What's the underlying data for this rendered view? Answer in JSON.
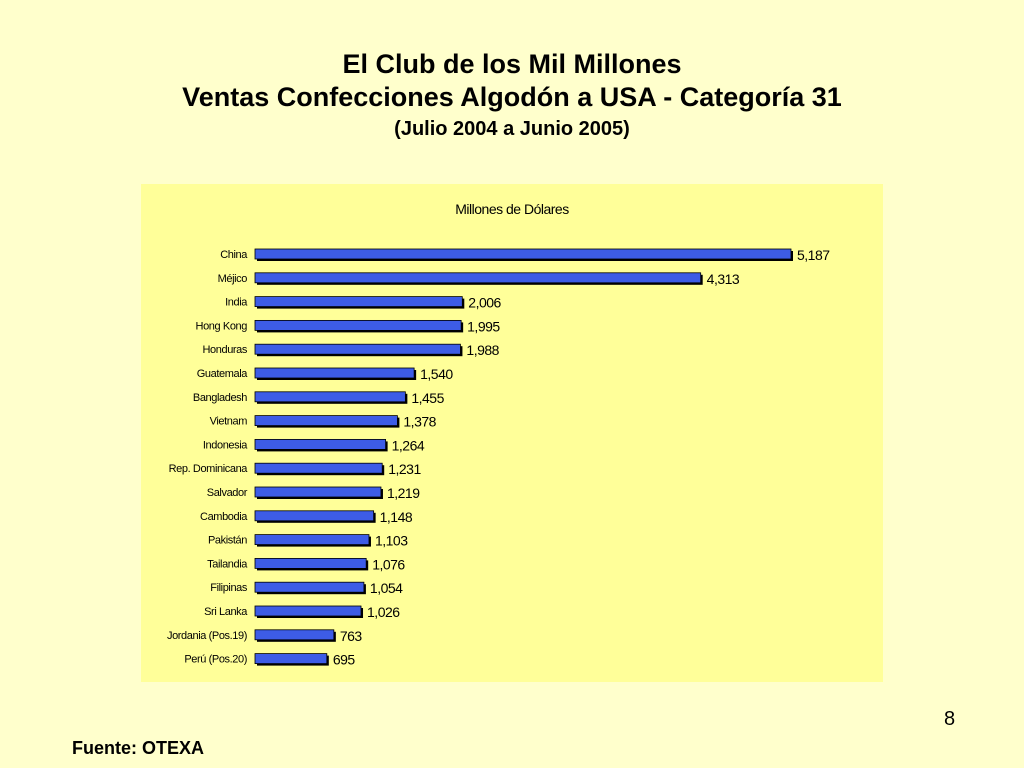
{
  "slide": {
    "title_line1": "El Club de los Mil Millones",
    "title_line2": "Ventas Confecciones Algodón a USA - Categoría 31",
    "title_line3": "(Julio 2004 a Junio 2005)",
    "page_number": "8",
    "source": "Fuente: OTEXA"
  },
  "chart_data": {
    "type": "bar",
    "orientation": "horizontal",
    "title": "Millones de Dólares",
    "categories": [
      "China",
      "Méjico",
      "India",
      "Hong Kong",
      "Honduras",
      "Guatemala",
      "Bangladesh",
      "Vietnam",
      "Indonesia",
      "Rep. Dominicana",
      "Salvador",
      "Cambodia",
      "Pakistán",
      "Tailandia",
      "Filipinas",
      "Sri Lanka",
      "Jordania (Pos.19)",
      "Perú (Pos.20)"
    ],
    "values": [
      5187,
      4313,
      2006,
      1995,
      1988,
      1540,
      1455,
      1378,
      1264,
      1231,
      1219,
      1148,
      1103,
      1076,
      1054,
      1026,
      763,
      695
    ],
    "value_labels": [
      "5,187",
      "4,313",
      "2,006",
      "1,995",
      "1,988",
      "1,540",
      "1,455",
      "1,378",
      "1,264",
      "1,231",
      "1,219",
      "1,148",
      "1,103",
      "1,076",
      "1,054",
      "1,026",
      "763",
      "695"
    ],
    "xlim": [
      0,
      5187
    ],
    "grid": false,
    "legend": "none",
    "bar_color": "#3d5ce6",
    "bar_shadow_color": "#000000",
    "background_color": "#ffff99"
  }
}
